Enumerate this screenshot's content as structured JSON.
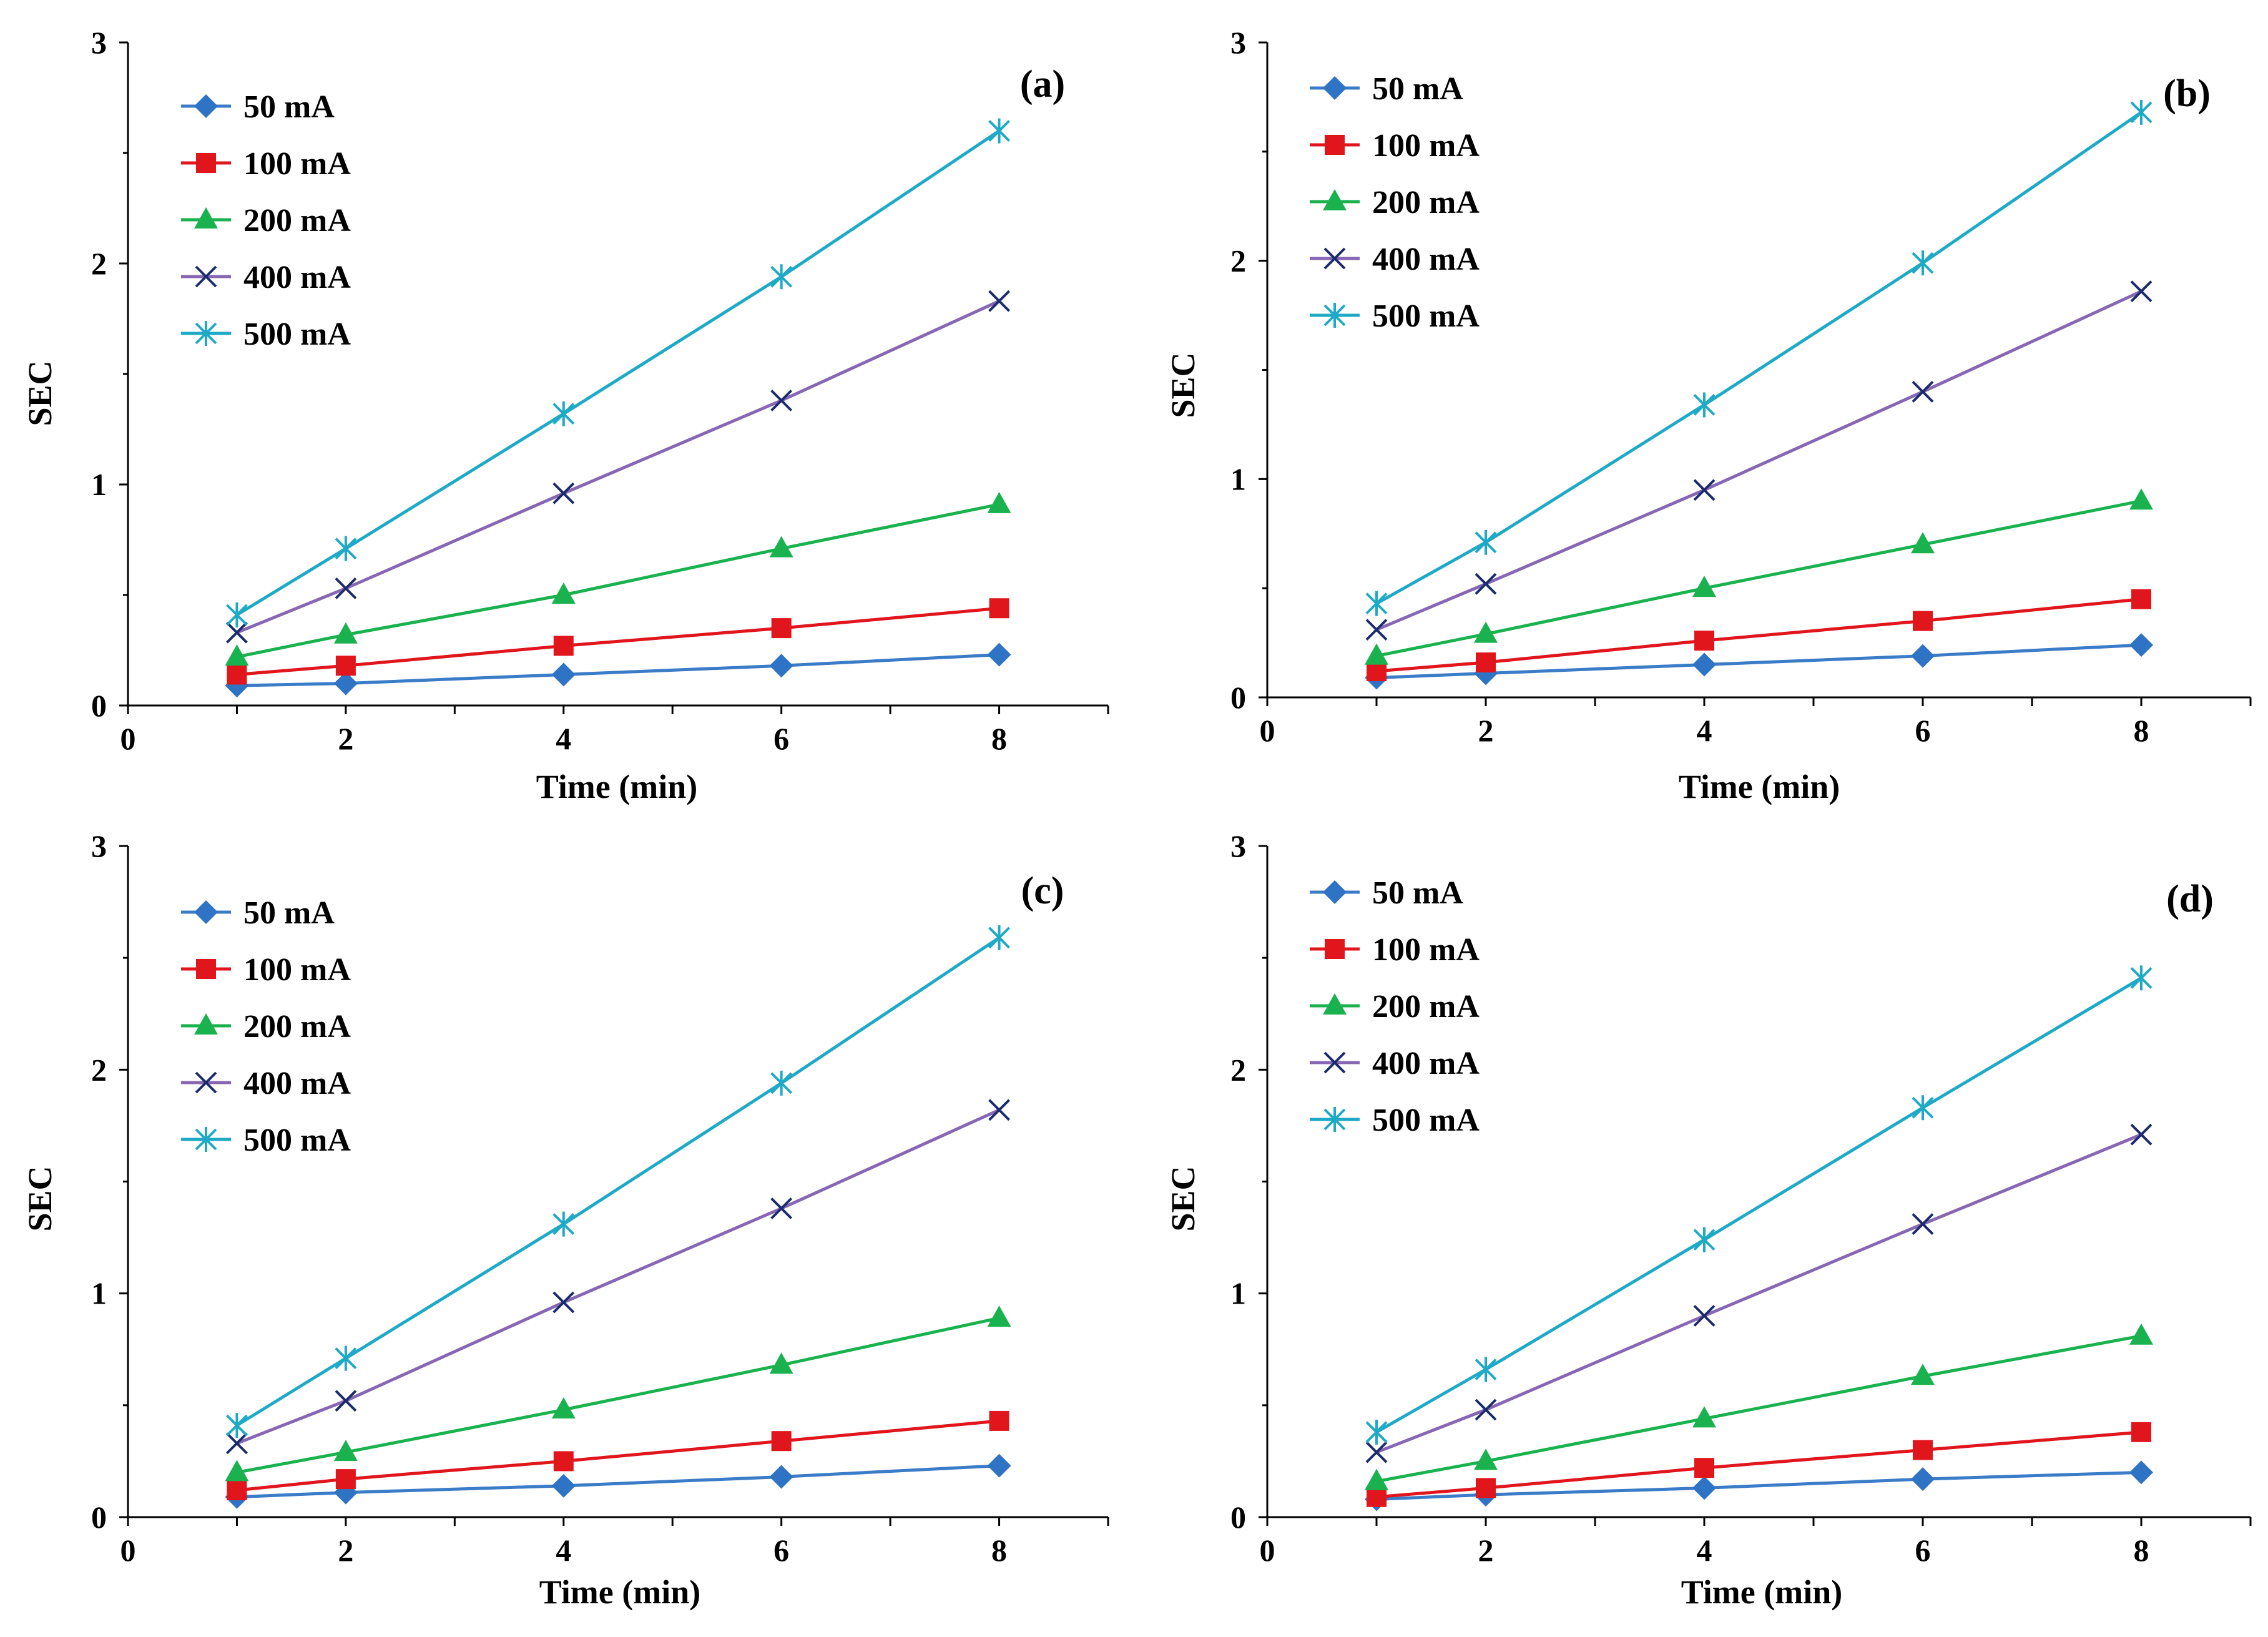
{
  "series_styles": [
    {
      "name": "50 mA",
      "line": "#3a7cc7",
      "marker": "diamond",
      "marker_color": "#2f73c4"
    },
    {
      "name": "100 mA",
      "line": "#e0161c",
      "marker": "square",
      "marker_color": "#e0161c"
    },
    {
      "name": "200 mA",
      "line": "#19b24f",
      "marker": "triangle",
      "marker_color": "#19b24f"
    },
    {
      "name": "400 mA",
      "line": "#8667b3",
      "marker": "x",
      "marker_color": "#1a2a6c"
    },
    {
      "name": "500 mA",
      "line": "#1eaac6",
      "marker": "star",
      "marker_color": "#1eaac6"
    }
  ],
  "chart_data": [
    {
      "type": "line",
      "panel_label": "(a)",
      "xlabel": "Time (min)",
      "ylabel": "SEC",
      "xlim": [
        0,
        9
      ],
      "ylim": [
        0,
        3
      ],
      "xticks": [
        0,
        2,
        4,
        6,
        8
      ],
      "yticks": [
        0,
        1,
        2,
        3
      ],
      "x": [
        1,
        2,
        4,
        6,
        8
      ],
      "series": [
        {
          "name": "50 mA",
          "values": [
            0.09,
            0.1,
            0.14,
            0.18,
            0.23
          ]
        },
        {
          "name": "100 mA",
          "values": [
            0.14,
            0.18,
            0.27,
            0.35,
            0.44
          ]
        },
        {
          "name": "200 mA",
          "values": [
            0.22,
            0.32,
            0.5,
            0.71,
            0.91
          ]
        },
        {
          "name": "400 mA",
          "values": [
            0.33,
            0.53,
            0.96,
            1.38,
            1.83
          ]
        },
        {
          "name": "500 mA",
          "values": [
            0.41,
            0.71,
            1.32,
            1.94,
            2.6
          ]
        }
      ]
    },
    {
      "type": "line",
      "panel_label": "(b)",
      "xlabel": "Time (min)",
      "ylabel": "SEC",
      "xlim": [
        0,
        9
      ],
      "ylim": [
        0,
        3
      ],
      "xticks": [
        0,
        2,
        4,
        6,
        8
      ],
      "yticks": [
        0,
        1,
        2,
        3
      ],
      "x": [
        1,
        2,
        4,
        6,
        8
      ],
      "series": [
        {
          "name": "50 mA",
          "values": [
            0.09,
            0.11,
            0.15,
            0.19,
            0.24
          ]
        },
        {
          "name": "100 mA",
          "values": [
            0.12,
            0.16,
            0.26,
            0.35,
            0.45
          ]
        },
        {
          "name": "200 mA",
          "values": [
            0.19,
            0.29,
            0.5,
            0.7,
            0.9
          ]
        },
        {
          "name": "400 mA",
          "values": [
            0.31,
            0.52,
            0.95,
            1.4,
            1.86
          ]
        },
        {
          "name": "500 mA",
          "values": [
            0.43,
            0.71,
            1.34,
            1.99,
            2.68
          ]
        }
      ]
    },
    {
      "type": "line",
      "panel_label": "(c)",
      "xlabel": "Time (min)",
      "ylabel": "SEC",
      "xlim": [
        0,
        9
      ],
      "ylim": [
        0,
        3
      ],
      "xticks": [
        0,
        2,
        4,
        6,
        8
      ],
      "yticks": [
        0,
        1,
        2,
        3
      ],
      "x": [
        1,
        2,
        4,
        6,
        8
      ],
      "series": [
        {
          "name": "50 mA",
          "values": [
            0.09,
            0.11,
            0.14,
            0.18,
            0.23
          ]
        },
        {
          "name": "100 mA",
          "values": [
            0.12,
            0.17,
            0.25,
            0.34,
            0.43
          ]
        },
        {
          "name": "200 mA",
          "values": [
            0.2,
            0.29,
            0.48,
            0.68,
            0.89
          ]
        },
        {
          "name": "400 mA",
          "values": [
            0.33,
            0.52,
            0.96,
            1.38,
            1.82
          ]
        },
        {
          "name": "500 mA",
          "values": [
            0.41,
            0.71,
            1.31,
            1.94,
            2.59
          ]
        }
      ]
    },
    {
      "type": "line",
      "panel_label": "(d)",
      "xlabel": "Time (min)",
      "ylabel": "SEC",
      "xlim": [
        0,
        9
      ],
      "ylim": [
        0,
        3
      ],
      "xticks": [
        0,
        2,
        4,
        6,
        8
      ],
      "yticks": [
        0,
        1,
        2,
        3
      ],
      "x": [
        1,
        2,
        4,
        6,
        8
      ],
      "series": [
        {
          "name": "50 mA",
          "values": [
            0.08,
            0.1,
            0.13,
            0.17,
            0.2
          ]
        },
        {
          "name": "100 mA",
          "values": [
            0.09,
            0.13,
            0.22,
            0.3,
            0.38
          ]
        },
        {
          "name": "200 mA",
          "values": [
            0.16,
            0.25,
            0.44,
            0.63,
            0.81
          ]
        },
        {
          "name": "400 mA",
          "values": [
            0.29,
            0.48,
            0.9,
            1.31,
            1.71
          ]
        },
        {
          "name": "500 mA",
          "values": [
            0.38,
            0.66,
            1.24,
            1.83,
            2.41
          ]
        }
      ]
    }
  ]
}
